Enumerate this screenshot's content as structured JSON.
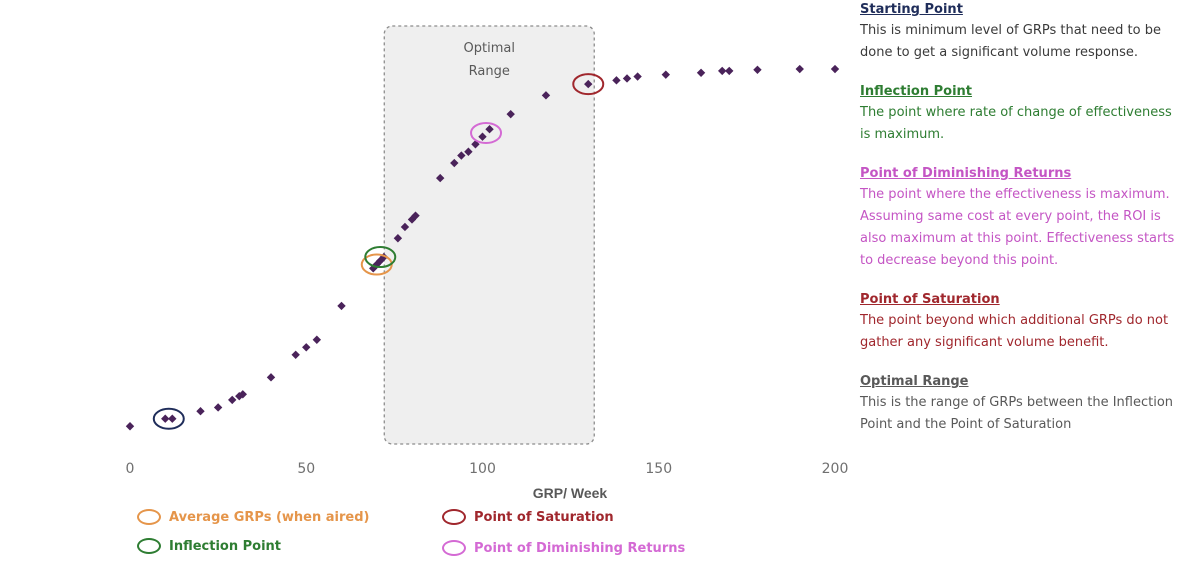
{
  "chart_data": {
    "type": "scatter",
    "title": "",
    "xlabel": "GRP/ Week",
    "ylabel": "",
    "xlim": [
      0,
      200
    ],
    "x_ticks": [
      "0",
      "50",
      "100",
      "150",
      "200"
    ],
    "grid": false,
    "marker_color": "#4a235a",
    "points": [
      {
        "x": 0,
        "y": 1
      },
      {
        "x": 10,
        "y": 3
      },
      {
        "x": 12,
        "y": 3
      },
      {
        "x": 20,
        "y": 5
      },
      {
        "x": 25,
        "y": 6
      },
      {
        "x": 29,
        "y": 8
      },
      {
        "x": 31,
        "y": 9
      },
      {
        "x": 32,
        "y": 9.5
      },
      {
        "x": 40,
        "y": 14
      },
      {
        "x": 47,
        "y": 20
      },
      {
        "x": 50,
        "y": 22
      },
      {
        "x": 53,
        "y": 24
      },
      {
        "x": 60,
        "y": 33
      },
      {
        "x": 69,
        "y": 43
      },
      {
        "x": 70,
        "y": 44
      },
      {
        "x": 71,
        "y": 45
      },
      {
        "x": 72,
        "y": 46
      },
      {
        "x": 76,
        "y": 51
      },
      {
        "x": 78,
        "y": 54
      },
      {
        "x": 80,
        "y": 56
      },
      {
        "x": 81,
        "y": 57
      },
      {
        "x": 88,
        "y": 67
      },
      {
        "x": 92,
        "y": 71
      },
      {
        "x": 94,
        "y": 73
      },
      {
        "x": 96,
        "y": 74
      },
      {
        "x": 98,
        "y": 76
      },
      {
        "x": 100,
        "y": 78
      },
      {
        "x": 102,
        "y": 80
      },
      {
        "x": 108,
        "y": 84
      },
      {
        "x": 118,
        "y": 89
      },
      {
        "x": 130,
        "y": 92
      },
      {
        "x": 138,
        "y": 93
      },
      {
        "x": 141,
        "y": 93.5
      },
      {
        "x": 144,
        "y": 94
      },
      {
        "x": 152,
        "y": 94.5
      },
      {
        "x": 162,
        "y": 95
      },
      {
        "x": 168,
        "y": 95.5
      },
      {
        "x": 170,
        "y": 95.5
      },
      {
        "x": 178,
        "y": 95.8
      },
      {
        "x": 190,
        "y": 96
      },
      {
        "x": 200,
        "y": 96
      }
    ],
    "highlights": [
      {
        "name": "Starting Point",
        "x": 11,
        "y": 3,
        "color": "#1f2d5a"
      },
      {
        "name": "Average GRPs (when aired)",
        "x": 70,
        "y": 44,
        "color": "#e5954a"
      },
      {
        "name": "Inflection Point",
        "x": 71,
        "y": 46,
        "color": "#2e7d32"
      },
      {
        "name": "Point of Diminishing Returns",
        "x": 101,
        "y": 79,
        "color": "#d46ad4"
      },
      {
        "name": "Point of Saturation",
        "x": 130,
        "y": 92,
        "color": "#a0272d"
      }
    ],
    "shaded_region": {
      "label_line1": "Optimal",
      "label_line2": "Range",
      "x_start": 71,
      "x_end": 130,
      "fill": "#efefef",
      "border": "#8c8c8c"
    }
  },
  "legend": [
    {
      "label": "Average GRPs (when aired)",
      "color": "#e5954a"
    },
    {
      "label": "Point of Saturation",
      "color": "#a0272d"
    },
    {
      "label": "Inflection Point",
      "color": "#2e7d32"
    },
    {
      "label": "Point of Diminishing Returns",
      "color": "#d46ad4"
    }
  ],
  "definitions": [
    {
      "title": "Starting Point",
      "color": "#1f2d5a",
      "text_color": "#3a3a3a",
      "text": "This is minimum  level of GRPs that need to be done to get a significant volume response."
    },
    {
      "title": "Inflection Point",
      "color": "#2e7d32",
      "text_color": "#2e7d32",
      "text": "The point where rate of change of effectiveness is maximum."
    },
    {
      "title": "Point of Diminishing  Returns",
      "color": "#c455c4",
      "text_color": "#c455c4",
      "text": "The point where the effectiveness is maximum. Assuming same cost at every point, the ROI is also maximum at this point. Effectiveness starts to decrease beyond this point."
    },
    {
      "title": "Point of Saturation",
      "color": "#a0272d",
      "text_color": "#a0272d",
      "text": "The point beyond which additional GRPs do not gather any significant volume benefit."
    },
    {
      "title": "Optimal Range",
      "color": "#595959",
      "text_color": "#595959",
      "text": "This is the range of GRPs between the Inflection Point and the Point of Saturation"
    }
  ]
}
